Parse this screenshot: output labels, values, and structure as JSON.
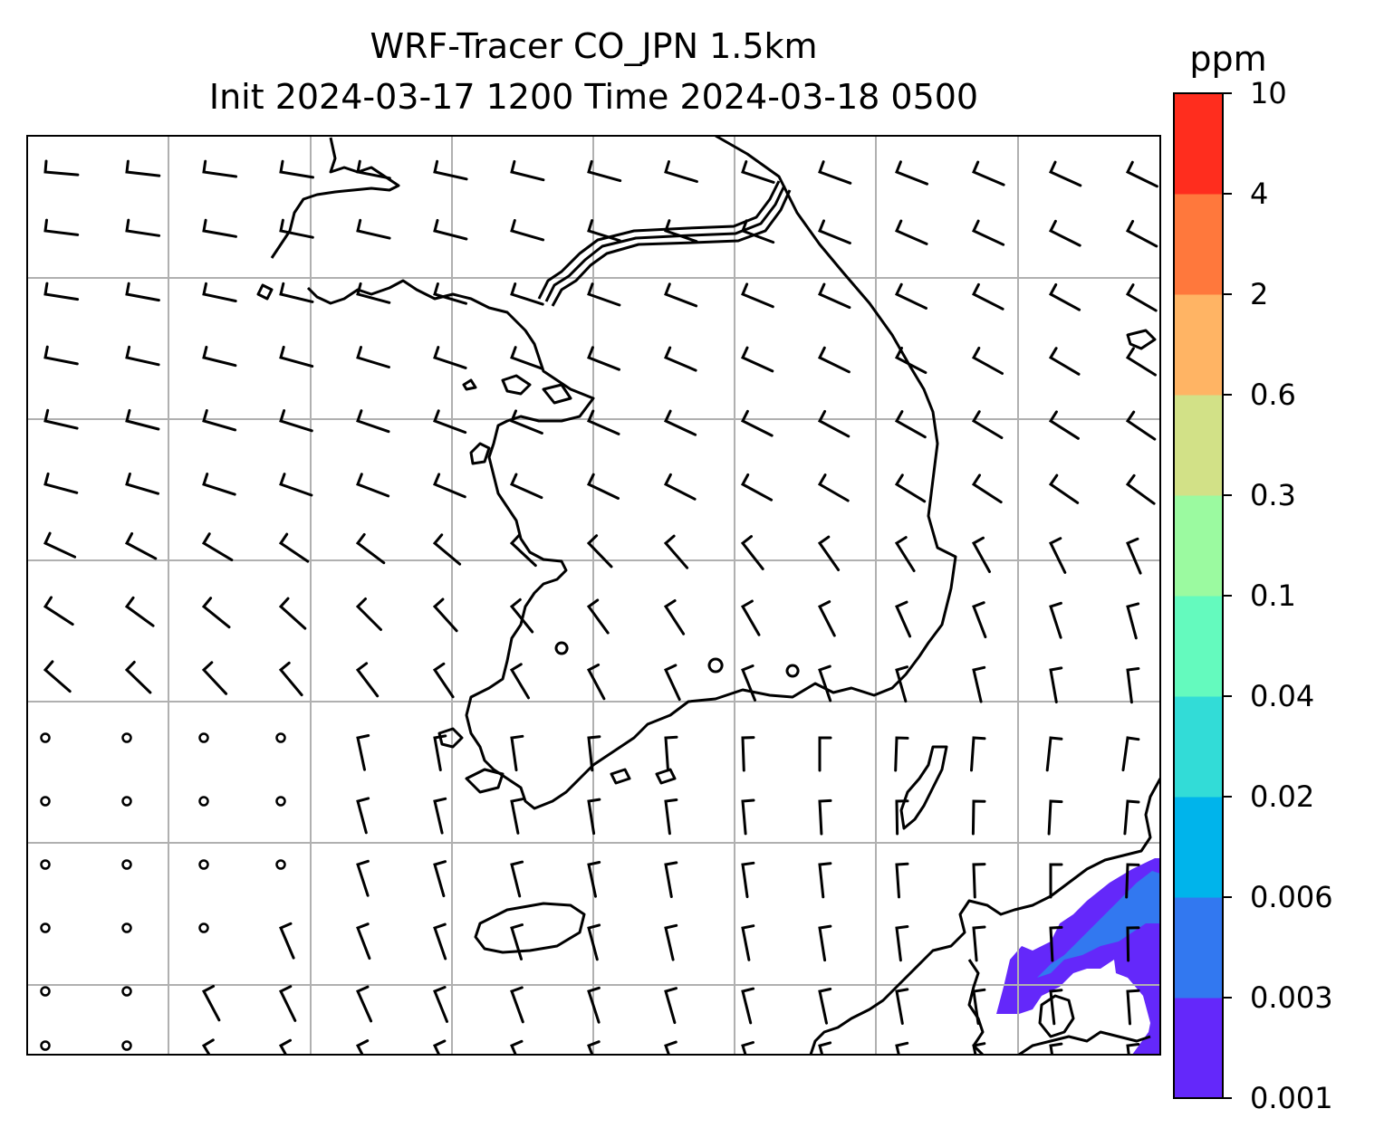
{
  "title": {
    "line1": "WRF-Tracer CO_JPN 1.5km",
    "line2": "Init 2024-03-17 1200 Time 2024-03-18 0500"
  },
  "colorbar": {
    "unit": "ppm",
    "levels": [
      "0.001",
      "0.003",
      "0.006",
      "0.02",
      "0.04",
      "0.1",
      "0.3",
      "0.6",
      "2",
      "4",
      "10"
    ],
    "colors": [
      "#6428fa",
      "#3278f0",
      "#00b4eb",
      "#32dcd7",
      "#64fabe",
      "#9bfaa0",
      "#d2e187",
      "#ffb464",
      "#ff783c",
      "#ff2d1e"
    ]
  },
  "map": {
    "region": "Korean Peninsula and Western Japan",
    "gridlines": true,
    "wind_barbs": true,
    "plume": {
      "location": "Northern Kyushu / Yamaguchi (southeast corner)",
      "max_band": "0.003-0.006",
      "colors_present": [
        "#6428fa",
        "#3278f0"
      ]
    }
  }
}
